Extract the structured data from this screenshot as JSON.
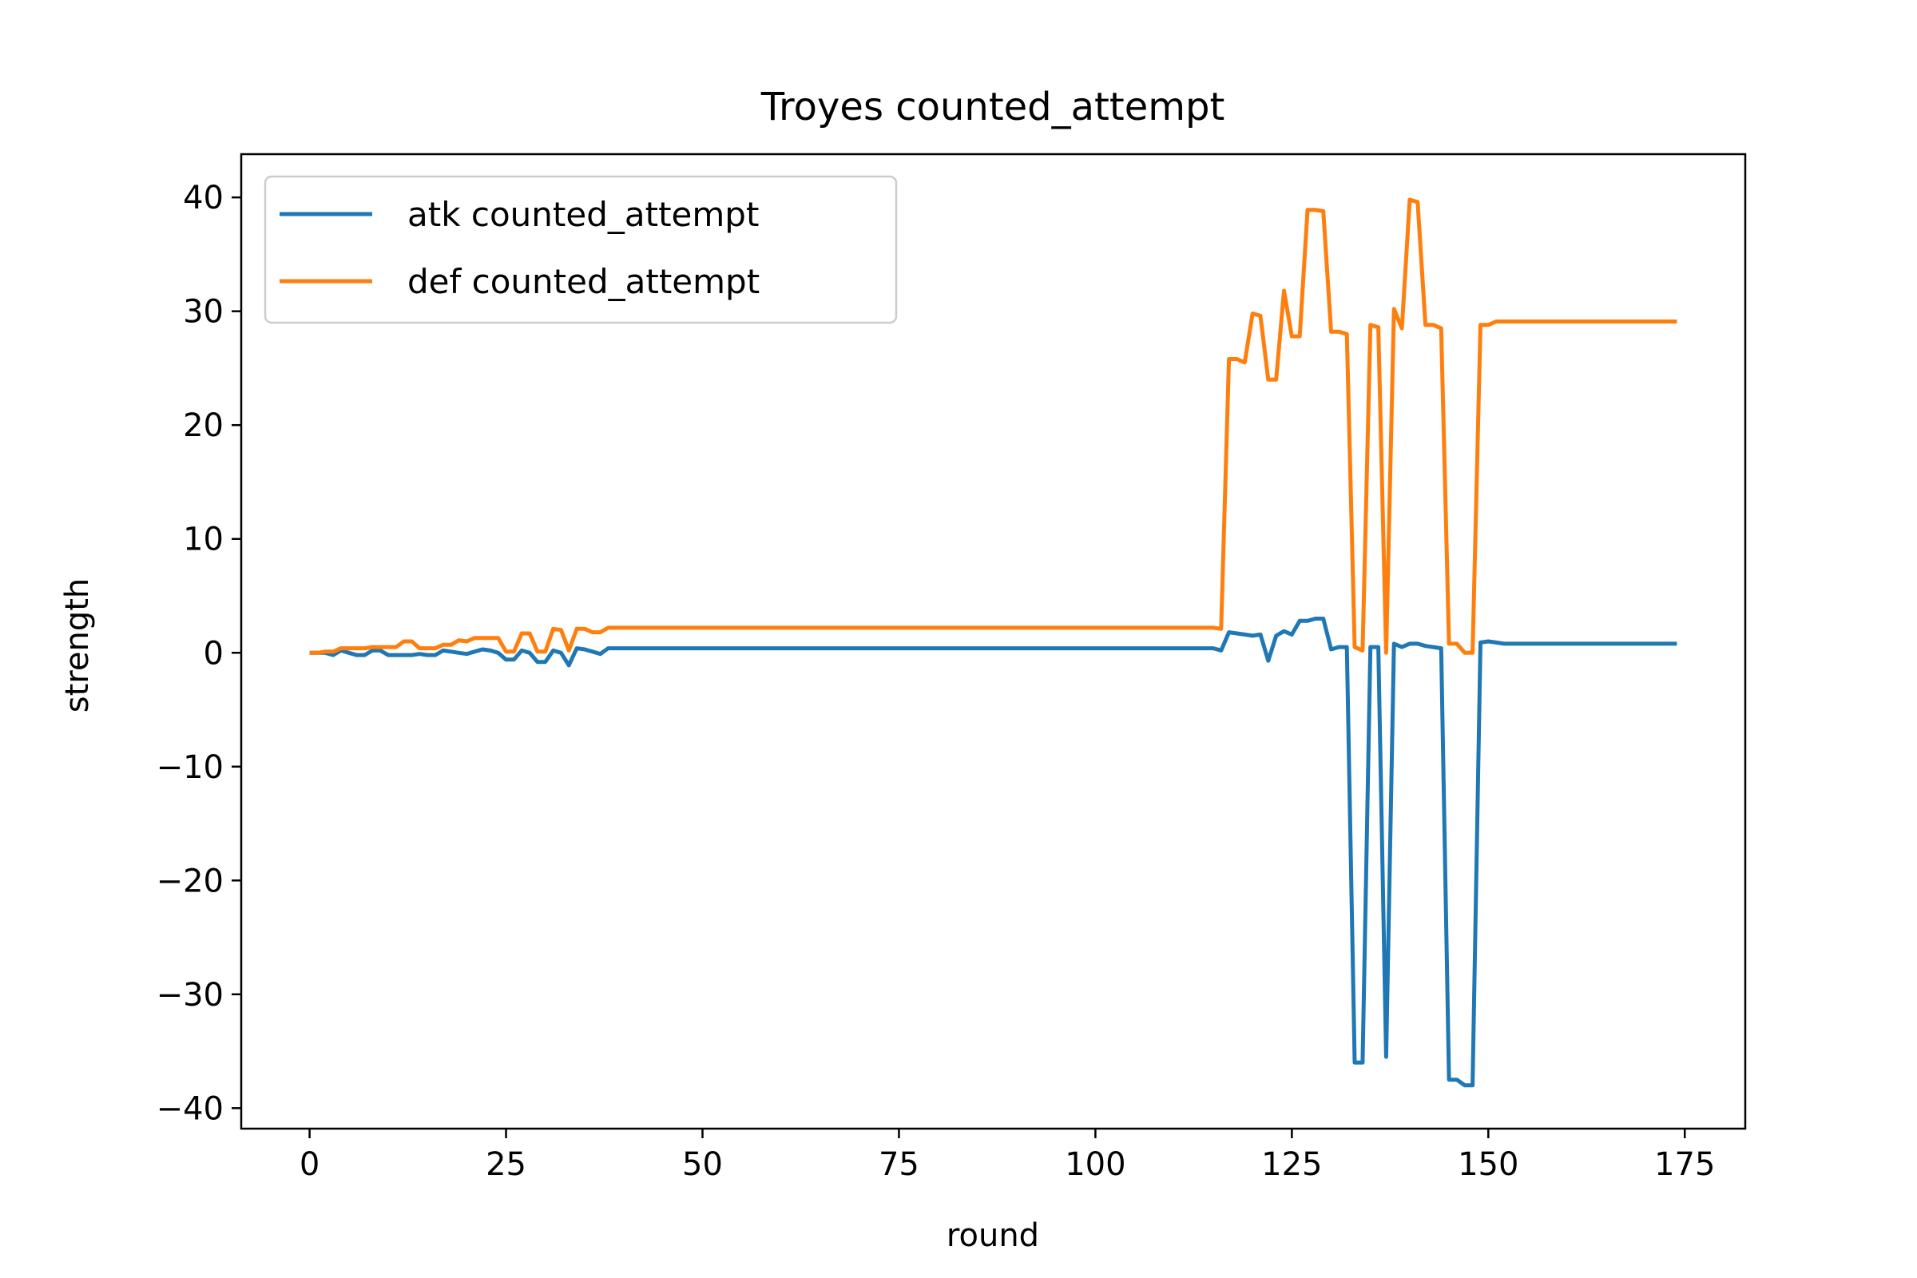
{
  "chart_data": {
    "type": "line",
    "title": "Troyes counted_attempt",
    "xlabel": "round",
    "ylabel": "strength",
    "xlim": [
      -8.7,
      182.7
    ],
    "ylim": [
      -41.8,
      43.8
    ],
    "xticks": [
      0,
      25,
      50,
      75,
      100,
      125,
      150,
      175
    ],
    "yticks": [
      -40,
      -30,
      -20,
      -10,
      0,
      10,
      20,
      30,
      40
    ],
    "xtick_labels": [
      "0",
      "25",
      "50",
      "75",
      "100",
      "125",
      "150",
      "175"
    ],
    "ytick_labels": [
      "−40",
      "−30",
      "−20",
      "−10",
      "0",
      "10",
      "20",
      "30",
      "40"
    ],
    "grid": false,
    "legend_position": "upper left",
    "series": [
      {
        "name": "atk counted_attempt",
        "color": "#1f77b4",
        "points": [
          [
            0,
            0
          ],
          [
            1,
            0
          ],
          [
            2,
            0
          ],
          [
            3,
            -0.2
          ],
          [
            4,
            0.2
          ],
          [
            5,
            0
          ],
          [
            6,
            -0.2
          ],
          [
            7,
            -0.2
          ],
          [
            8,
            0.2
          ],
          [
            9,
            0.2
          ],
          [
            10,
            -0.2
          ],
          [
            11,
            -0.2
          ],
          [
            12,
            -0.2
          ],
          [
            13,
            -0.2
          ],
          [
            14,
            -0.1
          ],
          [
            15,
            -0.2
          ],
          [
            16,
            -0.2
          ],
          [
            17,
            0.2
          ],
          [
            18,
            0.1
          ],
          [
            19,
            0
          ],
          [
            20,
            -0.1
          ],
          [
            21,
            0.1
          ],
          [
            22,
            0.3
          ],
          [
            23,
            0.2
          ],
          [
            24,
            0
          ],
          [
            25,
            -0.6
          ],
          [
            26,
            -0.6
          ],
          [
            27,
            0.2
          ],
          [
            28,
            0
          ],
          [
            29,
            -0.8
          ],
          [
            30,
            -0.8
          ],
          [
            31,
            0.2
          ],
          [
            32,
            0
          ],
          [
            33,
            -1.1
          ],
          [
            34,
            0.4
          ],
          [
            35,
            0.3
          ],
          [
            36,
            0.1
          ],
          [
            37,
            -0.1
          ],
          [
            38,
            0.4
          ],
          [
            115,
            0.4
          ],
          [
            116,
            0.2
          ],
          [
            117,
            1.8
          ],
          [
            118,
            1.7
          ],
          [
            119,
            1.6
          ],
          [
            120,
            1.5
          ],
          [
            121,
            1.6
          ],
          [
            122,
            -0.7
          ],
          [
            123,
            1.5
          ],
          [
            124,
            1.9
          ],
          [
            125,
            1.6
          ],
          [
            126,
            2.8
          ],
          [
            127,
            2.8
          ],
          [
            128,
            3
          ],
          [
            129,
            3
          ],
          [
            130,
            0.3
          ],
          [
            131,
            0.5
          ],
          [
            132,
            0.5
          ],
          [
            133,
            -36
          ],
          [
            134,
            -36
          ],
          [
            135,
            0.5
          ],
          [
            136,
            0.5
          ],
          [
            137,
            -35.5
          ],
          [
            138,
            0.8
          ],
          [
            139,
            0.5
          ],
          [
            140,
            0.8
          ],
          [
            141,
            0.8
          ],
          [
            142,
            0.6
          ],
          [
            143,
            0.5
          ],
          [
            144,
            0.4
          ],
          [
            145,
            -37.5
          ],
          [
            146,
            -37.5
          ],
          [
            147,
            -38
          ],
          [
            148,
            -38
          ],
          [
            149,
            0.9
          ],
          [
            150,
            1
          ],
          [
            151,
            0.9
          ],
          [
            152,
            0.8
          ],
          [
            174,
            0.8
          ]
        ]
      },
      {
        "name": "def counted_attempt",
        "color": "#ff7f0e",
        "points": [
          [
            0,
            0
          ],
          [
            1,
            0
          ],
          [
            2,
            0.1
          ],
          [
            3,
            0.1
          ],
          [
            4,
            0.4
          ],
          [
            5,
            0.4
          ],
          [
            6,
            0.4
          ],
          [
            7,
            0.4
          ],
          [
            8,
            0.5
          ],
          [
            9,
            0.5
          ],
          [
            10,
            0.5
          ],
          [
            11,
            0.5
          ],
          [
            12,
            1
          ],
          [
            13,
            1
          ],
          [
            14,
            0.4
          ],
          [
            15,
            0.4
          ],
          [
            16,
            0.4
          ],
          [
            17,
            0.7
          ],
          [
            18,
            0.7
          ],
          [
            19,
            1.1
          ],
          [
            20,
            1
          ],
          [
            21,
            1.3
          ],
          [
            22,
            1.3
          ],
          [
            23,
            1.3
          ],
          [
            24,
            1.3
          ],
          [
            25,
            0.1
          ],
          [
            26,
            0.1
          ],
          [
            27,
            1.7
          ],
          [
            28,
            1.7
          ],
          [
            29,
            0.1
          ],
          [
            30,
            0.1
          ],
          [
            31,
            2.1
          ],
          [
            32,
            2
          ],
          [
            33,
            0.2
          ],
          [
            34,
            2.1
          ],
          [
            35,
            2.1
          ],
          [
            36,
            1.8
          ],
          [
            37,
            1.8
          ],
          [
            38,
            2.2
          ],
          [
            115,
            2.2
          ],
          [
            116,
            2.1
          ],
          [
            117,
            25.8
          ],
          [
            118,
            25.8
          ],
          [
            119,
            25.5
          ],
          [
            120,
            29.8
          ],
          [
            121,
            29.6
          ],
          [
            122,
            24
          ],
          [
            123,
            24
          ],
          [
            124,
            31.8
          ],
          [
            125,
            27.8
          ],
          [
            126,
            27.8
          ],
          [
            127,
            38.9
          ],
          [
            128,
            38.9
          ],
          [
            129,
            38.8
          ],
          [
            130,
            28.2
          ],
          [
            131,
            28.2
          ],
          [
            132,
            28
          ],
          [
            133,
            0.5
          ],
          [
            134,
            0.2
          ],
          [
            135,
            28.8
          ],
          [
            136,
            28.6
          ],
          [
            137,
            0
          ],
          [
            138,
            30.2
          ],
          [
            139,
            28.5
          ],
          [
            140,
            39.8
          ],
          [
            141,
            39.6
          ],
          [
            142,
            28.8
          ],
          [
            143,
            28.8
          ],
          [
            144,
            28.5
          ],
          [
            145,
            0.8
          ],
          [
            146,
            0.8
          ],
          [
            147,
            0
          ],
          [
            148,
            0
          ],
          [
            149,
            28.8
          ],
          [
            150,
            28.8
          ],
          [
            151,
            29.1
          ],
          [
            152,
            29.1
          ],
          [
            174,
            29.1
          ]
        ]
      }
    ]
  }
}
